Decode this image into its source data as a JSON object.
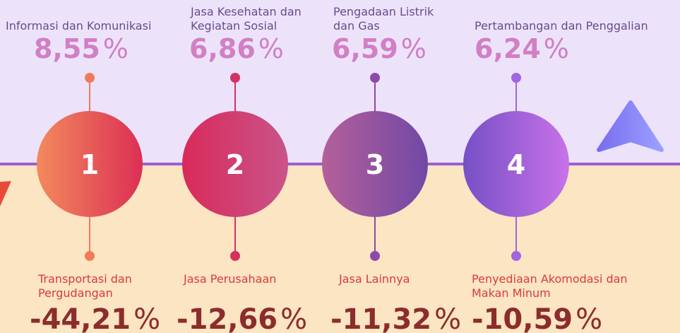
{
  "items": [
    {
      "number": "1",
      "top": {
        "label_lines": [
          "Informasi dan Komunikasi"
        ],
        "value": "8,55",
        "unit": "%"
      },
      "bottom": {
        "label_lines": [
          "Transportasi dan",
          "Pergudangan"
        ],
        "value": "-44,21",
        "unit": "%"
      }
    },
    {
      "number": "2",
      "top": {
        "label_lines": [
          "Jasa Kesehatan dan",
          "Kegiatan Sosial"
        ],
        "value": "6,86",
        "unit": "%"
      },
      "bottom": {
        "label_lines": [
          "Jasa Perusahaan"
        ],
        "value": "-12,66",
        "unit": "%"
      }
    },
    {
      "number": "3",
      "top": {
        "label_lines": [
          "Pengadaan Listrik",
          "dan Gas"
        ],
        "value": "6,59",
        "unit": "%"
      },
      "bottom": {
        "label_lines": [
          "Jasa Lainnya"
        ],
        "value": "-11,32",
        "unit": "%"
      }
    },
    {
      "number": "4",
      "top": {
        "label_lines": [
          "Pertambangan dan Penggalian"
        ],
        "value": "6,24",
        "unit": "%"
      },
      "bottom": {
        "label_lines": [
          "Penyediaan Akomodasi dan",
          "Makan Minum"
        ],
        "value": "-10,59",
        "unit": "%"
      }
    }
  ]
}
